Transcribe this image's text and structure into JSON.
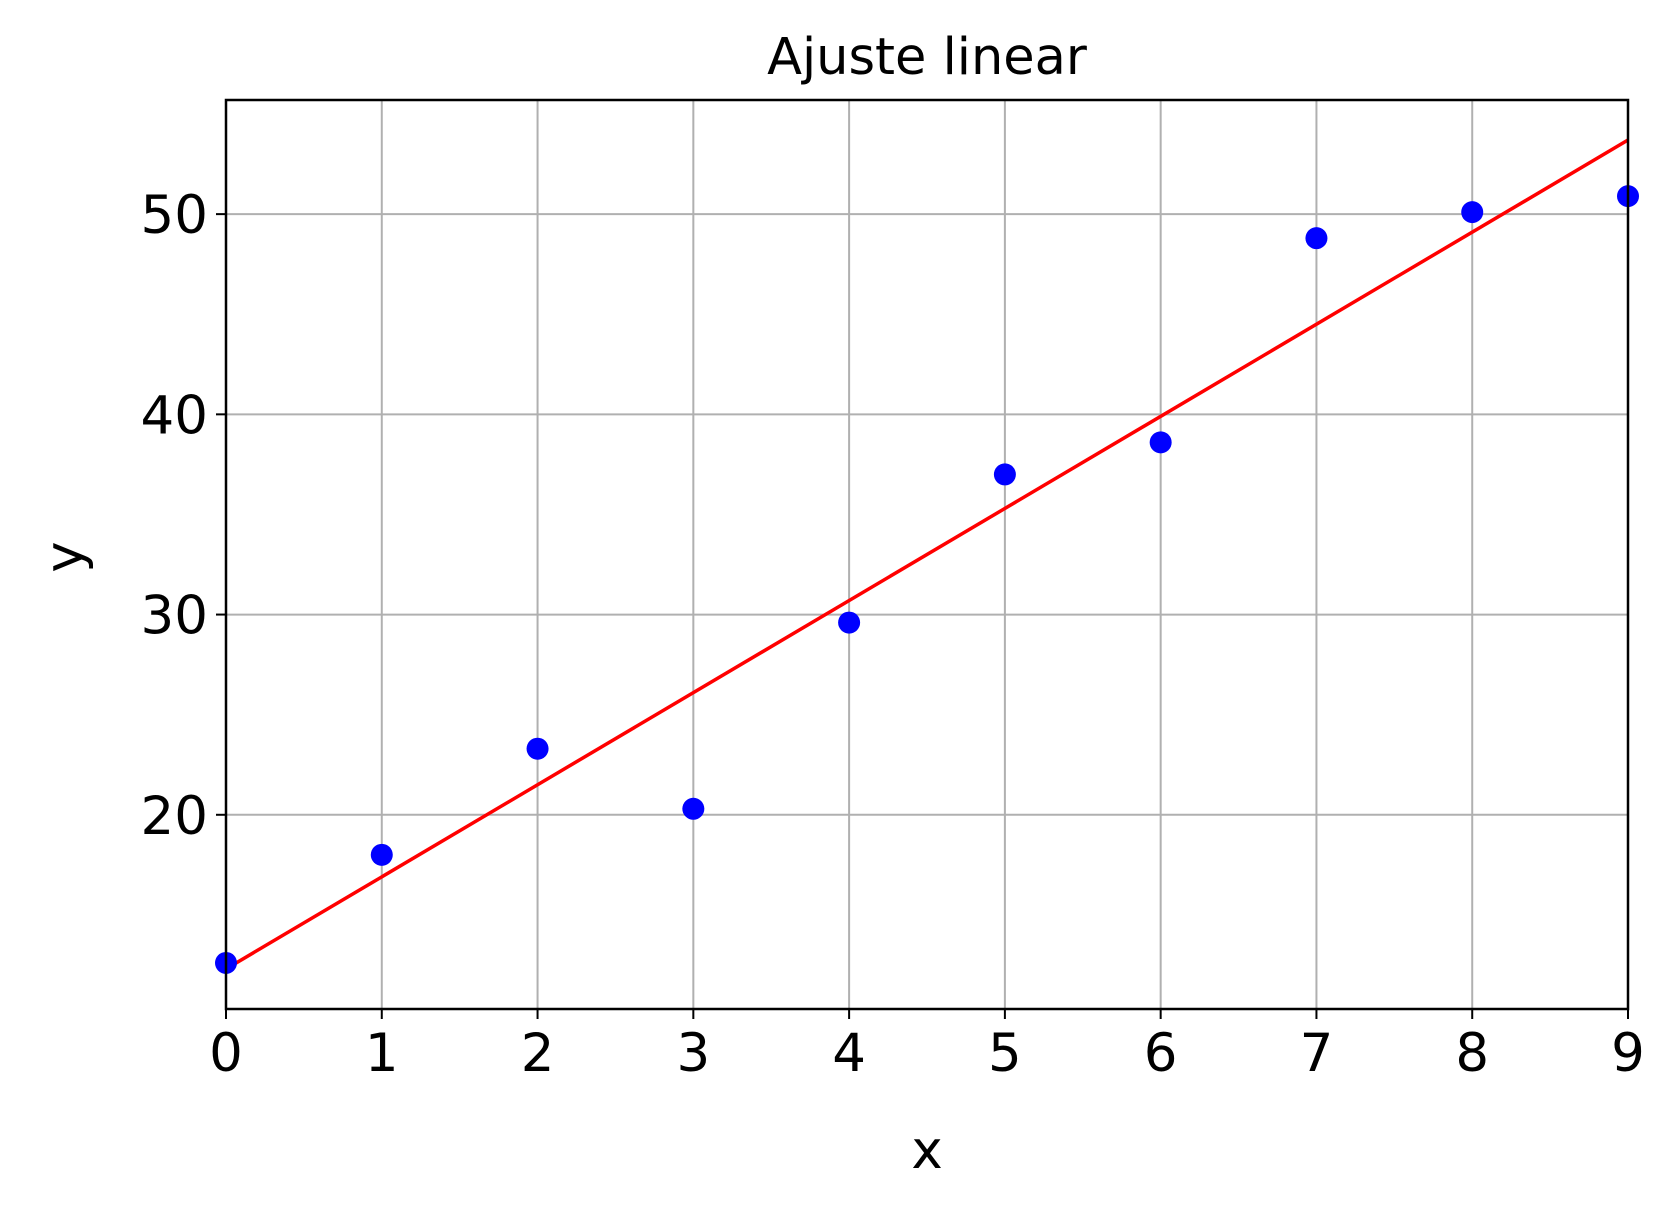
{
  "chart_data": {
    "type": "scatter",
    "title": "Ajuste linear",
    "xlabel": "x",
    "ylabel": "y",
    "xlim": [
      0,
      9
    ],
    "ylim": [
      10.3,
      55.7
    ],
    "grid": true,
    "xticks": [
      "0",
      "1",
      "2",
      "3",
      "4",
      "5",
      "6",
      "7",
      "8",
      "9"
    ],
    "yticks": [
      "20",
      "30",
      "40",
      "50"
    ],
    "points": [
      {
        "x": 0,
        "y": 12.6
      },
      {
        "x": 1,
        "y": 18.0
      },
      {
        "x": 2,
        "y": 23.3
      },
      {
        "x": 3,
        "y": 20.3
      },
      {
        "x": 4,
        "y": 29.6
      },
      {
        "x": 5,
        "y": 37.0
      },
      {
        "x": 6,
        "y": 38.6
      },
      {
        "x": 7,
        "y": 48.8
      },
      {
        "x": 8,
        "y": 50.1
      },
      {
        "x": 9,
        "y": 50.9
      }
    ],
    "fit_line": {
      "x": [
        0,
        9
      ],
      "y": [
        12.3,
        53.7
      ]
    },
    "colors": {
      "points": "#0000ff",
      "line": "#ff0000",
      "grid": "#b0b0b0",
      "axes": "#000000"
    }
  }
}
